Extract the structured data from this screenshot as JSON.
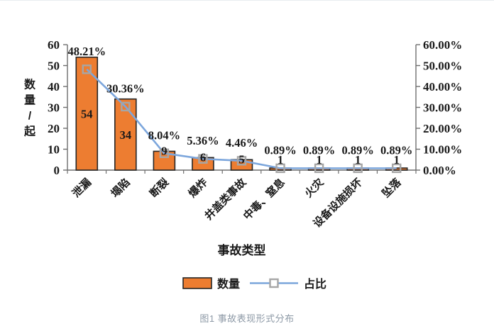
{
  "figure": {
    "caption": "图1 事故表现形式分布"
  },
  "chart_data": {
    "type": "bar",
    "combo": "bar+line",
    "title": "",
    "xlabel": "事故类型",
    "ylabel_left": "数量/起",
    "grid": false,
    "plot_background": "#ffffff",
    "categories": [
      "泄漏",
      "塌陷",
      "断裂",
      "爆炸",
      "井盖类事故",
      "中毒、窒息",
      "火灾",
      "设备设施损坏",
      "坠落"
    ],
    "series": [
      {
        "name": "数量",
        "type": "bar",
        "values": [
          54,
          34,
          9,
          6,
          5,
          1,
          1,
          1,
          1
        ],
        "color": "#ED7D31",
        "border_color": "#262626"
      },
      {
        "name": "占比",
        "type": "line",
        "values": [
          48.21,
          30.36,
          8.04,
          5.36,
          4.46,
          0.89,
          0.89,
          0.89,
          0.89
        ],
        "labels": [
          "48.21%",
          "30.36%",
          "8.04%",
          "5.36%",
          "4.46%",
          "0.89%",
          "0.89%",
          "0.89%",
          "0.89%"
        ],
        "color": "#7CA6DC",
        "marker": "square",
        "marker_color": "#A6A6A6"
      }
    ],
    "axes": {
      "left": {
        "min": 0,
        "max": 60,
        "step": 10,
        "tick_labels": [
          "0",
          "10",
          "20",
          "30",
          "40",
          "50",
          "60"
        ]
      },
      "right": {
        "min": 0,
        "max": 60,
        "step": 10,
        "tick_labels": [
          "0.00%",
          "10.00%",
          "20.00%",
          "30.00%",
          "40.00%",
          "50.00%",
          "60.00%"
        ]
      }
    },
    "axis_color": "#6e6e6e",
    "legend": {
      "position": "bottom",
      "items": [
        {
          "swatch": "bar",
          "label": "数量"
        },
        {
          "swatch": "line",
          "label": "占比"
        }
      ]
    }
  }
}
